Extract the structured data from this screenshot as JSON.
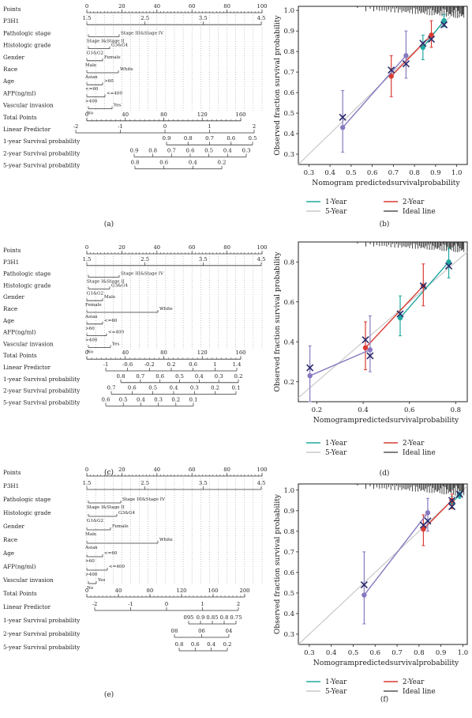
{
  "figure_labels": [
    "(a)",
    "(b)",
    "(c)",
    "(d)",
    "(e)",
    "(f)"
  ],
  "chart_data": [
    {
      "type": "nomogram",
      "panel": "(a)",
      "rows": [
        {
          "label": "Points",
          "ticks": [
            "0",
            "20",
            "40",
            "60",
            "80",
            "100"
          ],
          "min": 0,
          "max": 100
        },
        {
          "label": "P3H1",
          "ticks": [
            "1.5",
            "2.5",
            "3.5",
            "4.5"
          ]
        },
        {
          "label": "Pathologic stage",
          "levels": [
            "Stage I&Stage II",
            "Stage III&Stage IV"
          ]
        },
        {
          "label": "Histologic grade",
          "levels": [
            "G1&G2",
            "G3&G4"
          ]
        },
        {
          "label": "Gender",
          "levels": [
            "Male",
            "Female"
          ]
        },
        {
          "label": "Race",
          "levels": [
            "Asian",
            "White"
          ]
        },
        {
          "label": "Age",
          "levels": [
            "<=60",
            ">60"
          ]
        },
        {
          "label": "AFP(ng/ml)",
          "levels": [
            ">400",
            "<=400"
          ]
        },
        {
          "label": "Vascular invasion",
          "levels": [
            "No",
            "Yes"
          ]
        },
        {
          "label": "Total Points",
          "ticks": [
            "0",
            "40",
            "80",
            "120",
            "160"
          ],
          "min": 0,
          "max": 180
        },
        {
          "label": "Linear Predictor",
          "ticks": [
            "-2",
            "-1",
            "0",
            "1",
            "2"
          ]
        },
        {
          "label": "1-year Survival probability",
          "ticks": [
            "0.9",
            "0.8",
            "0.7",
            "0.6",
            "0.5"
          ]
        },
        {
          "label": "2-year Survival probability",
          "ticks": [
            "0.9",
            "0.8",
            "0.7",
            "0.6",
            "0.5",
            "0.4",
            "0.3"
          ]
        },
        {
          "label": "5-year Survival probability",
          "ticks": [
            "0.8",
            "0.6",
            "0.4",
            "0.2"
          ]
        }
      ]
    },
    {
      "type": "calibration",
      "panel": "(b)",
      "xlabel": "Nomogram predictedsurvivalprobability",
      "ylabel": "Observed fraction survival probability",
      "xlim": [
        0.25,
        1.05
      ],
      "ylim": [
        0.25,
        1.02
      ],
      "xticks": [
        "0.3",
        "0.4",
        "0.5",
        "0.6",
        "0.7",
        "0.8",
        "0.9",
        "1.0"
      ],
      "yticks": [
        "0.3",
        "0.4",
        "0.5",
        "0.6",
        "0.7",
        "0.8",
        "0.9",
        "1.0"
      ],
      "series": [
        {
          "name": "1-Year",
          "color": "#20a8a0",
          "points": [
            {
              "x": 0.84,
              "y": 0.82,
              "lo": 0.76,
              "hi": 0.88
            },
            {
              "x": 0.94,
              "y": 0.95,
              "lo": 0.92,
              "hi": 0.98
            }
          ]
        },
        {
          "name": "2-Year",
          "color": "#d93a32",
          "points": [
            {
              "x": 0.69,
              "y": 0.68,
              "lo": 0.58,
              "hi": 0.78
            },
            {
              "x": 0.88,
              "y": 0.88,
              "lo": 0.82,
              "hi": 0.95
            }
          ]
        },
        {
          "name": "5-Year",
          "color": "#8878c0",
          "points": [
            {
              "x": 0.46,
              "y": 0.43,
              "lo": 0.31,
              "hi": 0.61
            },
            {
              "x": 0.76,
              "y": 0.78,
              "lo": 0.67,
              "hi": 0.9
            }
          ]
        }
      ],
      "crosses": [
        {
          "x": 0.46,
          "y": 0.48
        },
        {
          "x": 0.69,
          "y": 0.71
        },
        {
          "x": 0.76,
          "y": 0.74
        },
        {
          "x": 0.84,
          "y": 0.84
        },
        {
          "x": 0.88,
          "y": 0.86
        },
        {
          "x": 0.94,
          "y": 0.93
        }
      ],
      "legend": [
        {
          "label": "1-Year",
          "color": "#20a8a0"
        },
        {
          "label": "2-Year",
          "color": "#d93a32"
        },
        {
          "label": "5-Year",
          "color": "#c8c8c8"
        },
        {
          "label": "Ideal line",
          "color": "#555555"
        }
      ]
    },
    {
      "type": "nomogram",
      "panel": "(c)",
      "rows": [
        {
          "label": "Points",
          "ticks": [
            "0",
            "20",
            "40",
            "60",
            "80",
            "100"
          ],
          "min": 0,
          "max": 100
        },
        {
          "label": "P3H1",
          "ticks": [
            "1.5",
            "2.5",
            "3.5",
            "4.5"
          ]
        },
        {
          "label": "Pathologic stage",
          "levels": [
            "Stage I&Stage II",
            "Stage III&Stage IV"
          ]
        },
        {
          "label": "Histologic grade",
          "levels": [
            "G1&G2",
            "G3&G4"
          ]
        },
        {
          "label": "Gender",
          "levels": [
            "Female",
            "Male"
          ]
        },
        {
          "label": "Race",
          "levels": [
            "Asian",
            "White"
          ]
        },
        {
          "label": "Age",
          "levels": [
            ">60",
            "<=60"
          ]
        },
        {
          "label": "AFP(ng/ml)",
          "levels": [
            ">400",
            "<=400"
          ]
        },
        {
          "label": "Vascular invasion",
          "levels": [
            "No",
            "Yes"
          ]
        },
        {
          "label": "Total Points",
          "ticks": [
            "0",
            "40",
            "80",
            "120",
            "160"
          ],
          "min": 0,
          "max": 180
        },
        {
          "label": "Linear Predictor",
          "ticks": [
            "-1",
            "-0.6",
            "-0.2",
            "0.2",
            "0.6",
            "1",
            "1.4"
          ]
        },
        {
          "label": "1-year Survival probability",
          "ticks": [
            "0.8",
            "0.7",
            "0.6",
            "0.5",
            "0.4",
            "0.3",
            "0.2"
          ]
        },
        {
          "label": "2-year Survival probability",
          "ticks": [
            "0.7",
            "0.6",
            "0.5",
            "0.4",
            "0.3",
            "0.2",
            "0.1"
          ]
        },
        {
          "label": "5-year Survival probability",
          "ticks": [
            "0.6",
            "0.5",
            "0.4",
            "0.3",
            "0.2",
            "0.1"
          ]
        }
      ]
    },
    {
      "type": "calibration",
      "panel": "(d)",
      "xlabel": "Nomogrampredictedsurvivalprobability",
      "ylabel": "Observed fraction survival probability",
      "xlim": [
        0.12,
        0.85
      ],
      "ylim": [
        0.1,
        0.9
      ],
      "xticks": [
        "0.2",
        "0.4",
        "0.6",
        "0.8"
      ],
      "yticks": [
        "0.2",
        "0.4",
        "0.6",
        "0.8"
      ],
      "series": [
        {
          "name": "1-Year",
          "color": "#20a8a0",
          "points": [
            {
              "x": 0.56,
              "y": 0.52,
              "lo": 0.43,
              "hi": 0.63
            },
            {
              "x": 0.77,
              "y": 0.8,
              "lo": 0.72,
              "hi": 0.87
            }
          ]
        },
        {
          "name": "2-Year",
          "color": "#d93a32",
          "points": [
            {
              "x": 0.41,
              "y": 0.37,
              "lo": 0.26,
              "hi": 0.5
            },
            {
              "x": 0.66,
              "y": 0.68,
              "lo": 0.58,
              "hi": 0.79
            }
          ]
        },
        {
          "name": "5-Year",
          "color": "#8878c0",
          "points": [
            {
              "x": 0.17,
              "y": 0.23,
              "lo": 0.1,
              "hi": 0.38
            },
            {
              "x": 0.43,
              "y": 0.36,
              "lo": 0.25,
              "hi": 0.53
            }
          ]
        }
      ],
      "crosses": [
        {
          "x": 0.17,
          "y": 0.27
        },
        {
          "x": 0.41,
          "y": 0.41
        },
        {
          "x": 0.43,
          "y": 0.33
        },
        {
          "x": 0.56,
          "y": 0.54
        },
        {
          "x": 0.66,
          "y": 0.68
        },
        {
          "x": 0.77,
          "y": 0.78
        }
      ],
      "legend": [
        {
          "label": "1-Year",
          "color": "#20a8a0"
        },
        {
          "label": "2-Year",
          "color": "#d93a32"
        },
        {
          "label": "5-Year",
          "color": "#c8c8c8"
        },
        {
          "label": "Ideal line",
          "color": "#555555"
        }
      ]
    },
    {
      "type": "nomogram",
      "panel": "(e)",
      "rows": [
        {
          "label": "Points",
          "ticks": [
            "0",
            "20",
            "40",
            "60",
            "80",
            "100"
          ],
          "min": 0,
          "max": 100
        },
        {
          "label": "P3H1",
          "ticks": [
            "1.5",
            "2.5",
            "3.5",
            "4.5"
          ]
        },
        {
          "label": "Pathologic stage",
          "levels": [
            "Stage I&Stage II",
            "Stage III&Stage IV"
          ]
        },
        {
          "label": "Histologic grade",
          "levels": [
            "G1&G2",
            "G3&G4"
          ]
        },
        {
          "label": "Gender",
          "levels": [
            "Male",
            "Female"
          ]
        },
        {
          "label": "Race",
          "levels": [
            "Asian",
            "White"
          ]
        },
        {
          "label": "Age",
          "levels": [
            ">60",
            "<=60"
          ]
        },
        {
          "label": "AFP(ng/ml)",
          "levels": [
            ">400",
            "<=400"
          ]
        },
        {
          "label": "Vascular invasion",
          "levels": [
            "No",
            "Yes"
          ]
        },
        {
          "label": "Total Points",
          "ticks": [
            "0",
            "40",
            "80",
            "120",
            "160",
            "200"
          ],
          "min": 0,
          "max": 210
        },
        {
          "label": "Linear Predictor",
          "ticks": [
            "-2",
            "-1",
            "0",
            "1",
            "2"
          ]
        },
        {
          "label": "1-year Survival probability",
          "ticks": [
            "095",
            "0.9",
            "0.85",
            "0.8",
            "0.75"
          ]
        },
        {
          "label": "2-year Survival probability",
          "ticks": [
            "08",
            "06",
            "04"
          ]
        },
        {
          "label": "5-year Survival probability",
          "ticks": [
            "0.8",
            "0.6",
            "0.4",
            "0.2"
          ]
        }
      ]
    },
    {
      "type": "calibration",
      "panel": "(f)",
      "xlabel": "Nomogrampredictedsurvivalprobability",
      "ylabel": "Observed fraction survival probability",
      "xlim": [
        0.25,
        1.02
      ],
      "ylim": [
        0.25,
        1.03
      ],
      "xticks": [
        "0.3",
        "0.4",
        "0.5",
        "0.6",
        "0.7",
        "0.8",
        "0.9",
        "1.0"
      ],
      "yticks": [
        "0.3",
        "0.4",
        "0.5",
        "0.6",
        "0.7",
        "0.8",
        "0.9",
        "1.0"
      ],
      "series": [
        {
          "name": "1-Year",
          "color": "#20a8a0",
          "points": [
            {
              "x": 0.95,
              "y": 0.94,
              "lo": 0.91,
              "hi": 0.97
            },
            {
              "x": 0.985,
              "y": 0.975,
              "lo": 0.96,
              "hi": 0.99
            }
          ]
        },
        {
          "name": "2-Year",
          "color": "#d93a32",
          "points": [
            {
              "x": 0.82,
              "y": 0.81,
              "lo": 0.73,
              "hi": 0.88
            },
            {
              "x": 0.95,
              "y": 0.95,
              "lo": 0.91,
              "hi": 0.98
            }
          ]
        },
        {
          "name": "5-Year",
          "color": "#8878c0",
          "points": [
            {
              "x": 0.55,
              "y": 0.49,
              "lo": 0.35,
              "hi": 0.7
            },
            {
              "x": 0.84,
              "y": 0.89,
              "lo": 0.8,
              "hi": 0.96
            }
          ]
        }
      ],
      "crosses": [
        {
          "x": 0.55,
          "y": 0.54
        },
        {
          "x": 0.82,
          "y": 0.83
        },
        {
          "x": 0.84,
          "y": 0.85
        },
        {
          "x": 0.95,
          "y": 0.92
        },
        {
          "x": 0.95,
          "y": 0.95
        },
        {
          "x": 0.985,
          "y": 0.98
        }
      ],
      "legend": [
        {
          "label": "1-Year",
          "color": "#20a8a0"
        },
        {
          "label": "2-Year",
          "color": "#d93a32"
        },
        {
          "label": "5-Year",
          "color": "#c8c8c8"
        },
        {
          "label": "Ideal line",
          "color": "#555555"
        }
      ]
    }
  ]
}
